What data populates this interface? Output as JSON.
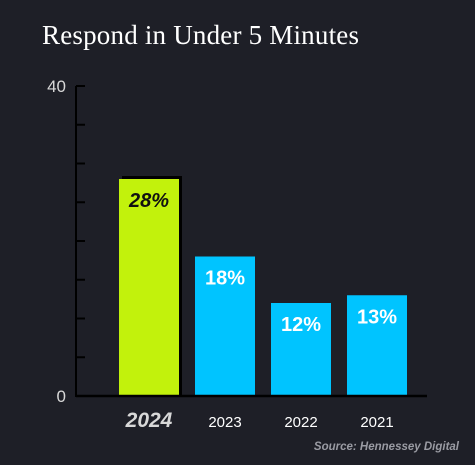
{
  "title": "Respond in Under 5 Minutes",
  "source": "Source: Hennessey Digital",
  "colors": {
    "background": "#1e1f27",
    "highlight": "#c2f20c",
    "bar": "#00c4ff",
    "axis": "#000000",
    "tick_label": "#d8d8d8",
    "text": "#ffffff"
  },
  "chart_data": {
    "type": "bar",
    "categories": [
      "2024",
      "2023",
      "2022",
      "2021"
    ],
    "values": [
      28,
      18,
      12,
      13
    ],
    "value_labels": [
      "28%",
      "18%",
      "12%",
      "13%"
    ],
    "highlight_index": 0,
    "ylim": [
      0,
      40
    ],
    "y_tick_labels": [
      "0",
      "40"
    ],
    "minor_tick_step": 5,
    "title": "Respond in Under 5 Minutes",
    "xlabel": "",
    "ylabel": "",
    "grid": false,
    "legend": "none"
  }
}
